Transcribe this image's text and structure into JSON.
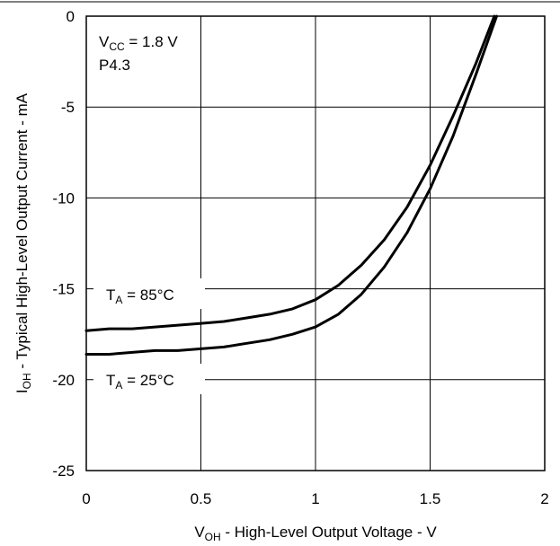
{
  "chart_data": {
    "type": "line",
    "title": "",
    "xlabel": {
      "main": "V",
      "sub": "OH",
      "rest": " - High-Level Output Voltage - V"
    },
    "ylabel": {
      "main": "I",
      "sub": "OH",
      "rest": " - Typical High-Level Output Current - mA"
    },
    "xlim": [
      0,
      2
    ],
    "ylim": [
      -25,
      0
    ],
    "x_ticks": [
      0,
      0.5,
      1,
      1.5,
      2
    ],
    "x_tick_labels": [
      "0",
      "0.5",
      "1",
      "1.5",
      "2"
    ],
    "y_ticks": [
      0,
      -5,
      -10,
      -15,
      -20,
      -25
    ],
    "y_tick_labels": [
      "0",
      "-5",
      "-10",
      "-15",
      "-20",
      "-25"
    ],
    "grid": true,
    "annotations": {
      "vcc": {
        "main": "V",
        "sub": "CC",
        "rest": " = 1.8 V"
      },
      "pin": "P4.3",
      "t85": {
        "main": "T",
        "sub": "A",
        "rest": " = 85°C"
      },
      "t25": {
        "main": "T",
        "sub": "A",
        "rest": " = 25°C"
      }
    },
    "series": [
      {
        "name": "T_A = 85°C",
        "x": [
          0,
          0.1,
          0.2,
          0.3,
          0.4,
          0.5,
          0.6,
          0.7,
          0.8,
          0.9,
          1.0,
          1.1,
          1.2,
          1.3,
          1.4,
          1.5,
          1.6,
          1.7,
          1.78
        ],
        "y": [
          -17.3,
          -17.2,
          -17.2,
          -17.1,
          -17.0,
          -16.9,
          -16.8,
          -16.6,
          -16.4,
          -16.1,
          -15.6,
          -14.8,
          -13.7,
          -12.3,
          -10.5,
          -8.2,
          -5.5,
          -2.6,
          0
        ]
      },
      {
        "name": "T_A = 25°C",
        "x": [
          0,
          0.1,
          0.2,
          0.3,
          0.4,
          0.5,
          0.6,
          0.7,
          0.8,
          0.9,
          1.0,
          1.1,
          1.2,
          1.3,
          1.4,
          1.5,
          1.6,
          1.7,
          1.79
        ],
        "y": [
          -18.6,
          -18.6,
          -18.5,
          -18.4,
          -18.4,
          -18.3,
          -18.2,
          -18.0,
          -17.8,
          -17.5,
          -17.1,
          -16.4,
          -15.3,
          -13.8,
          -11.9,
          -9.5,
          -6.6,
          -3.2,
          0
        ]
      }
    ]
  }
}
